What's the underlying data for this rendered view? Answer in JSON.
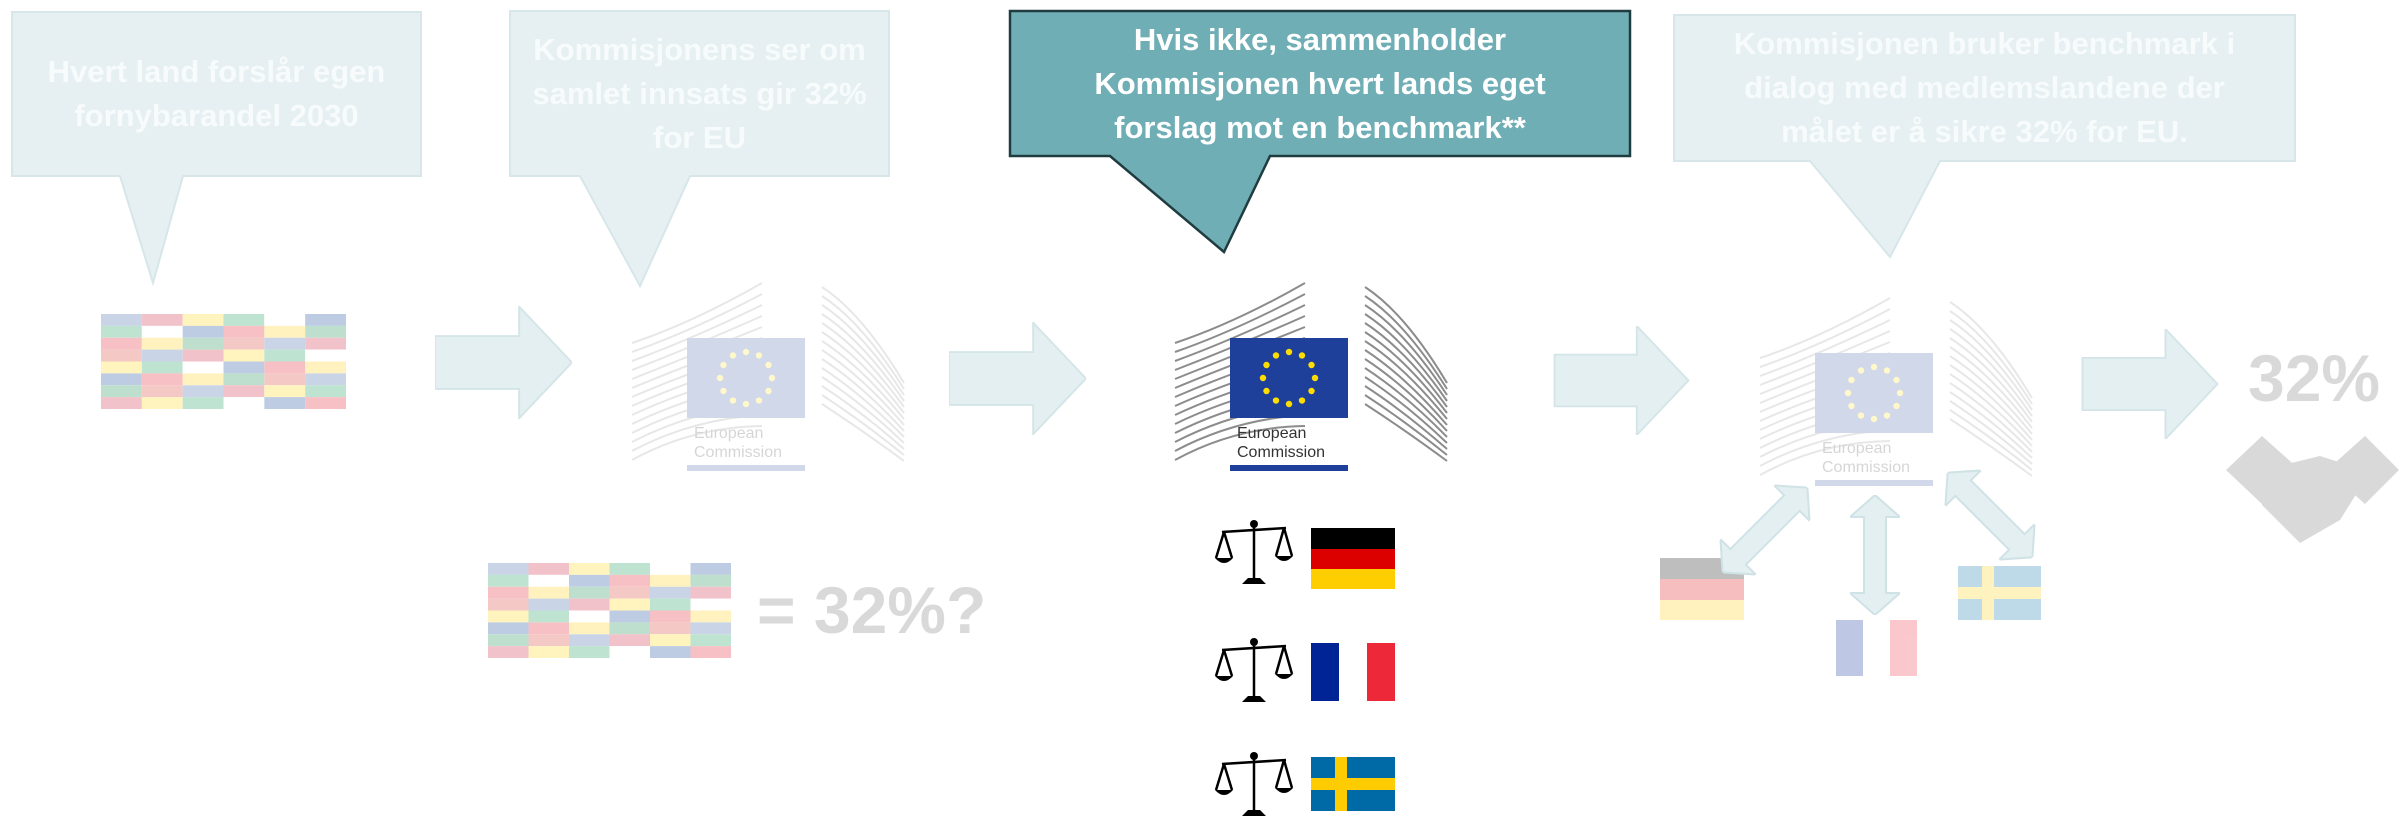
{
  "callouts": [
    {
      "text": "Hvert land forslår egen fornybarandel 2030"
    },
    {
      "text": "Kommisjonens ser om samlet innsats gir 32% for EU"
    },
    {
      "text": "Hvis ikke, sammenholder Kommisjonen hvert lands eget forslag mot en benchmark**"
    },
    {
      "text": "Kommisjonen bruker benchmark  i dialog med medlemslandene der målet er å sikre 32% for EU."
    }
  ],
  "logo": {
    "line1": "European",
    "line2": "Commission"
  },
  "equation": "= 32%?",
  "result": "32%"
}
